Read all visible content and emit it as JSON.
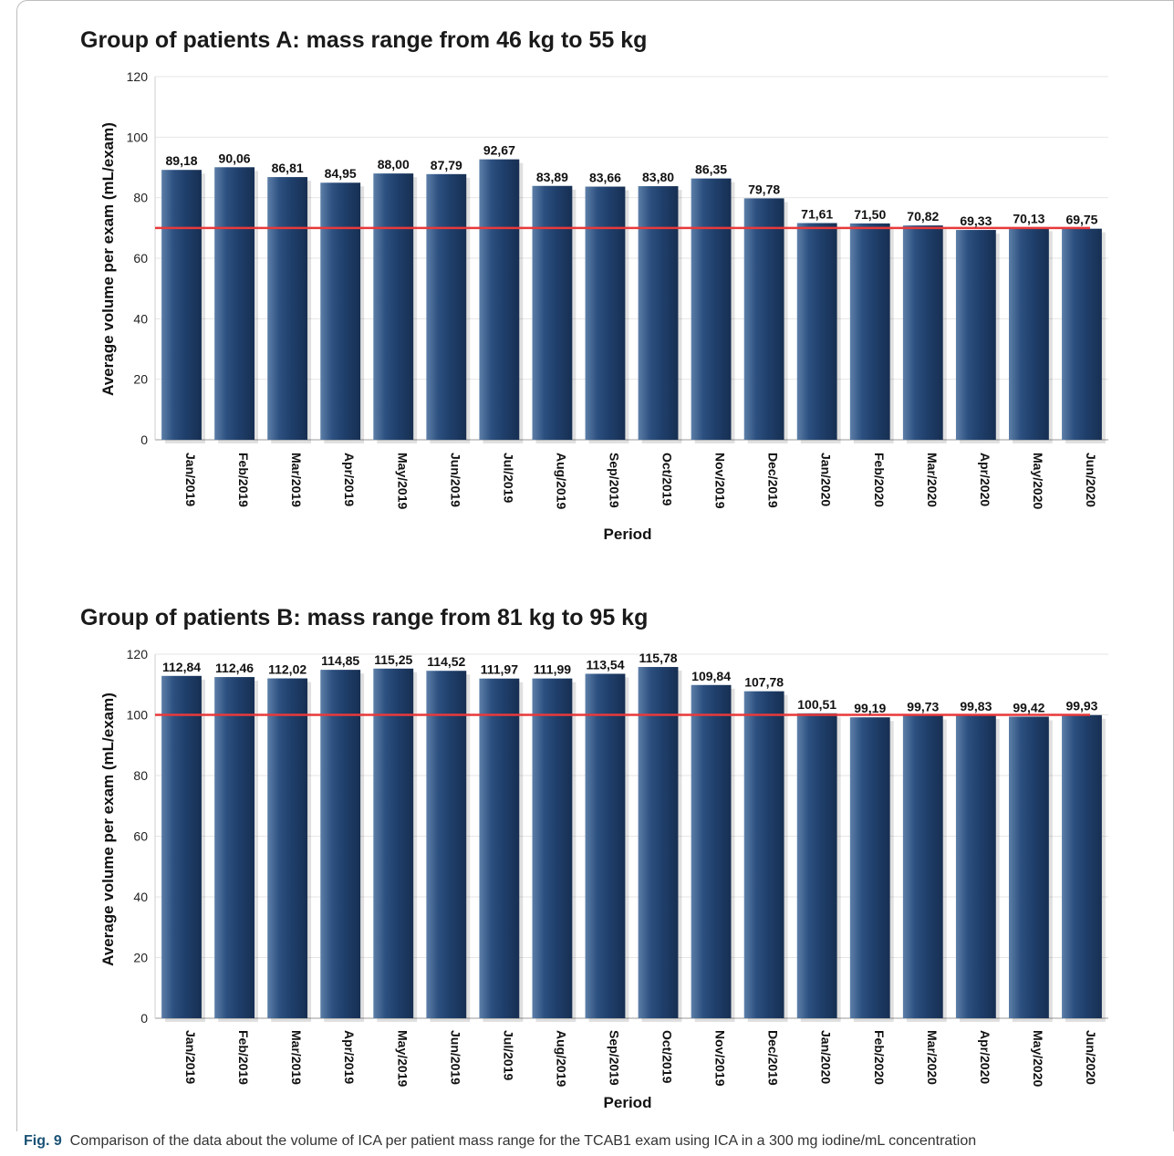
{
  "chart_data": [
    {
      "type": "bar",
      "title": "Group of patients A: mass range from 46 kg to 55 kg",
      "xlabel": "Period",
      "ylabel": "Average volume per exam (mL/exam)",
      "ylim": [
        0,
        120
      ],
      "yticks": [
        0,
        20,
        40,
        60,
        80,
        100,
        120
      ],
      "grid": true,
      "reference_line": 70,
      "bar_color": "#1f3f6b",
      "reference_color": "#e8393b",
      "categories": [
        "Jan/2019",
        "Feb/2019",
        "Mar/2019",
        "Apr/2019",
        "May/2019",
        "Jun/2019",
        "Jul/2019",
        "Aug/2019",
        "Sep/2019",
        "Oct/2019",
        "Nov/2019",
        "Dec/2019",
        "Jan/2020",
        "Feb/2020",
        "Mar/2020",
        "Apr/2020",
        "May/2020",
        "Jun/2020"
      ],
      "values": [
        89.18,
        90.06,
        86.81,
        84.95,
        88.0,
        87.79,
        92.67,
        83.89,
        83.66,
        83.8,
        86.35,
        79.78,
        71.61,
        71.5,
        70.82,
        69.33,
        70.13,
        69.75
      ],
      "data_labels": [
        "89,18",
        "90,06",
        "86,81",
        "84,95",
        "88,00",
        "87,79",
        "92,67",
        "83,89",
        "83,66",
        "83,80",
        "86,35",
        "79,78",
        "71,61",
        "71,50",
        "70,82",
        "69,33",
        "70,13",
        "69,75"
      ]
    },
    {
      "type": "bar",
      "title": "Group of patients B: mass range from 81 kg to 95 kg",
      "xlabel": "Period",
      "ylabel": "Average volume per exam (mL/exam)",
      "ylim": [
        0,
        120
      ],
      "yticks": [
        0,
        20,
        40,
        60,
        80,
        100,
        120
      ],
      "grid": true,
      "reference_line": 100,
      "bar_color": "#1f3f6b",
      "reference_color": "#e8393b",
      "categories": [
        "Jan/2019",
        "Feb/2019",
        "Mar/2019",
        "Apr/2019",
        "May/2019",
        "Jun/2019",
        "Jul/2019",
        "Aug/2019",
        "Sep/2019",
        "Oct/2019",
        "Nov/2019",
        "Dec/2019",
        "Jan/2020",
        "Feb/2020",
        "Mar/2020",
        "Apr/2020",
        "May/2020",
        "Jun/2020"
      ],
      "values": [
        112.84,
        112.46,
        112.02,
        114.85,
        115.25,
        114.52,
        111.97,
        111.99,
        113.54,
        115.78,
        109.84,
        107.78,
        100.51,
        99.19,
        99.73,
        99.83,
        99.42,
        99.93
      ],
      "data_labels": [
        "112,84",
        "112,46",
        "112,02",
        "114,85",
        "115,25",
        "114,52",
        "111,97",
        "111,99",
        "113,54",
        "115,78",
        "109,84",
        "107,78",
        "100,51",
        "99,19",
        "99,73",
        "99,83",
        "99,42",
        "99,93"
      ]
    }
  ],
  "caption": {
    "label": "Fig. 9",
    "text": "Comparison of the data about the volume of ICA per patient mass range for the TCAB1 exam using ICA in a 300 mg iodine/mL concentration"
  }
}
